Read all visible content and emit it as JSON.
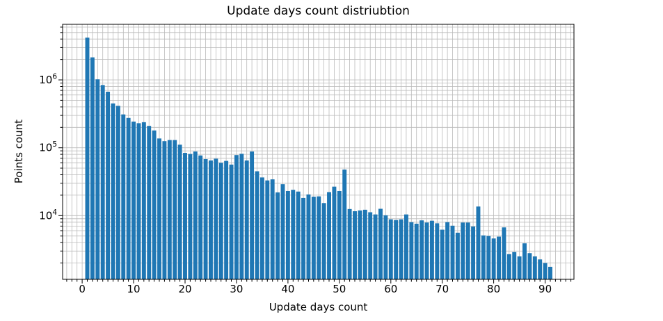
{
  "chart_data": {
    "type": "bar",
    "title": "Update days count distriubtion",
    "xlabel": "Update days count",
    "ylabel": "Points count",
    "yscale": "log",
    "grid": "both",
    "legend": "none",
    "bar_color": "#1f77b4",
    "grid_color": "#bababa",
    "spine_color": "#000000",
    "text_color": "#000000",
    "xlim": [
      -3.8,
      95.6
    ],
    "ylim": [
      1150,
      6600000
    ],
    "x_major_ticks": [
      0,
      10,
      20,
      30,
      40,
      50,
      60,
      70,
      80,
      90
    ],
    "y_major_ticks": [
      10000,
      100000,
      1000000
    ],
    "y_tick_labels": [
      "10^4",
      "10^5",
      "10^6"
    ],
    "x": [
      1,
      2,
      3,
      4,
      5,
      6,
      7,
      8,
      9,
      10,
      11,
      12,
      13,
      14,
      15,
      16,
      17,
      18,
      19,
      20,
      21,
      22,
      23,
      24,
      25,
      26,
      27,
      28,
      29,
      30,
      31,
      32,
      33,
      34,
      35,
      36,
      37,
      38,
      39,
      40,
      41,
      42,
      43,
      44,
      45,
      46,
      47,
      48,
      49,
      50,
      51,
      52,
      53,
      54,
      55,
      56,
      57,
      58,
      59,
      60,
      61,
      62,
      63,
      64,
      65,
      66,
      67,
      68,
      69,
      70,
      71,
      72,
      73,
      74,
      75,
      76,
      77,
      78,
      79,
      80,
      81,
      82,
      83,
      84,
      85,
      86,
      87,
      88,
      89,
      90,
      91
    ],
    "counts": [
      4200000,
      2150000,
      1020000,
      840000,
      670000,
      450000,
      415000,
      310000,
      275000,
      243000,
      230000,
      238000,
      210000,
      180000,
      137000,
      125000,
      130000,
      130000,
      111000,
      84000,
      81000,
      88000,
      77000,
      68000,
      65000,
      69000,
      60000,
      64000,
      56500,
      78000,
      81500,
      65000,
      88000,
      45000,
      36500,
      33000,
      34200,
      22000,
      29000,
      23000,
      24000,
      22600,
      18200,
      20500,
      19000,
      19200,
      15300,
      22200,
      26700,
      23000,
      47700,
      12500,
      11600,
      11900,
      12200,
      11200,
      10400,
      12600,
      10100,
      8800,
      8600,
      8800,
      10400,
      8000,
      7600,
      8500,
      7900,
      8400,
      7700,
      6200,
      8000,
      7100,
      5600,
      7900,
      7900,
      6900,
      13600,
      5100,
      5000,
      4600,
      4900,
      6700,
      2700,
      2900,
      2500,
      3900,
      2800,
      2500,
      2260,
      2000,
      1760
    ],
    "bar_width_units": 0.8
  }
}
